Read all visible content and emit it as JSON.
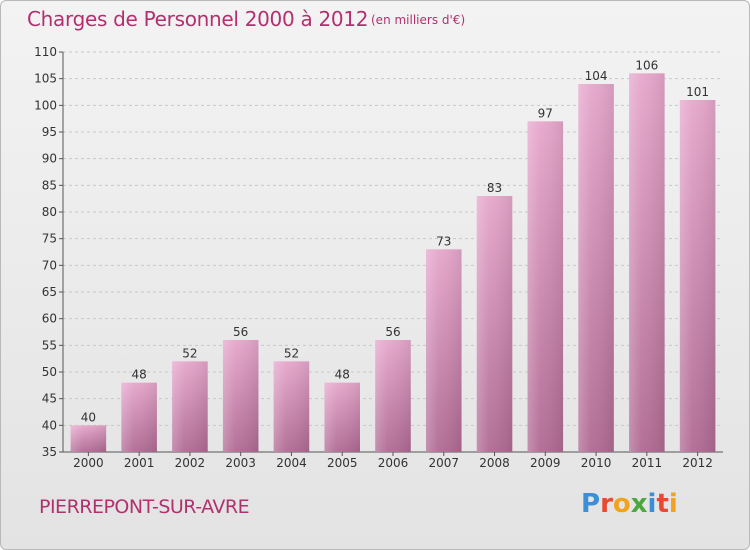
{
  "chart_title": "Charges de Personnel 2000 à 2012",
  "chart_subtitle": "(en milliers d'€)",
  "commune_name": "PIERREPONT-SUR-AVRE",
  "logo": {
    "text": "Proxiti",
    "letters": [
      {
        "ch": "P",
        "color": "#3b8fd6"
      },
      {
        "ch": "r",
        "color": "#e8492f"
      },
      {
        "ch": "o",
        "color": "#f2a21b"
      },
      {
        "ch": "x",
        "color": "#4aa83e"
      },
      {
        "ch": "i",
        "color": "#3b8fd6"
      },
      {
        "ch": "t",
        "color": "#e8492f"
      },
      {
        "ch": "i",
        "color": "#f2a21b"
      }
    ]
  },
  "colors": {
    "title": "#b3306f",
    "bar_top": "#e6a7cc",
    "bar_bottom": "#b06a93",
    "grid": "#c8c8c8",
    "axis": "#555555"
  },
  "chart_data": {
    "type": "bar",
    "title": "Charges de Personnel 2000 à 2012",
    "subtitle": "(en milliers d'€)",
    "categories": [
      "2000",
      "2001",
      "2002",
      "2003",
      "2004",
      "2005",
      "2006",
      "2007",
      "2008",
      "2009",
      "2010",
      "2011",
      "2012"
    ],
    "values": [
      40,
      48,
      52,
      56,
      52,
      48,
      56,
      73,
      83,
      97,
      104,
      106,
      101
    ],
    "ylim": [
      35,
      110
    ],
    "yticks": [
      35,
      40,
      45,
      50,
      55,
      60,
      65,
      70,
      75,
      80,
      85,
      90,
      95,
      100,
      105,
      110
    ],
    "grid": true,
    "xlabel": "",
    "ylabel": ""
  }
}
